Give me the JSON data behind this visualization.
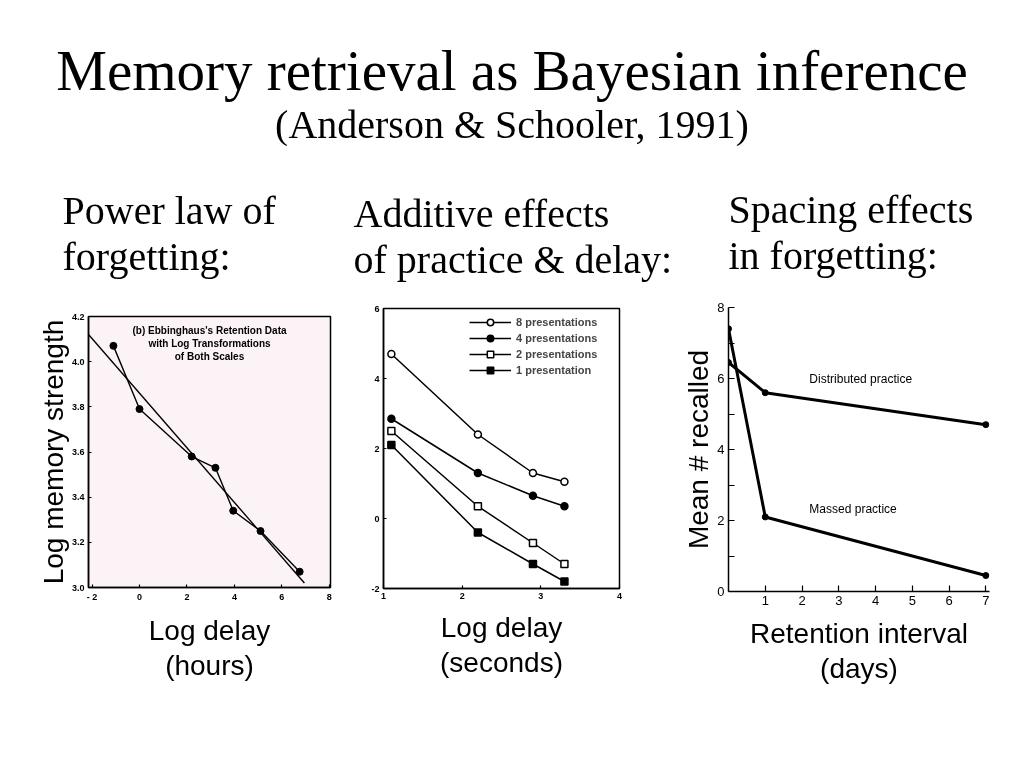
{
  "chart_data": [
    {
      "type": "line",
      "title": "Memory retrieval as Bayesian inference",
      "subtitle": "(Anderson & Schooler, 1991)",
      "annotations": [
        "Power law of\nforgetting:",
        "(b) Ebbinghaus's Retention Data\nwith Log Transformations\nof Both Scales"
      ],
      "xlabel": "Log delay\n(hours)",
      "ylabel": "Log memory strength",
      "xlim": [
        -2.15,
        8.05
      ],
      "ylim": [
        3.0,
        4.2
      ],
      "xticks": [
        {
          "value": -2,
          "label": "- 2"
        },
        0,
        2,
        4,
        6,
        8
      ],
      "yticks": [
        {
          "value": 3,
          "label": "3.0"
        },
        3.2,
        3.4,
        3.6,
        3.8,
        {
          "value": 4,
          "label": "4.0"
        },
        4.2
      ],
      "series": [
        {
          "type": "line",
          "color": "#000000",
          "marker": "circle",
          "x": [
            -1.1,
            0,
            2.2,
            3.2,
            3.95,
            5.1,
            6.75
          ],
          "values": [
            4.07,
            3.79,
            3.58,
            3.53,
            3.34,
            3.25,
            3.07
          ]
        },
        {
          "type": "line",
          "color": "#000000",
          "marker": "none",
          "x": [
            -2.15,
            6.95
          ],
          "values": [
            4.12,
            3.02
          ]
        }
      ]
    },
    {
      "type": "line",
      "title": "Additive effects\nof practice & delay:",
      "xlabel": "Log delay\n(seconds)",
      "xlim": [
        1,
        4
      ],
      "ylim": [
        -2,
        6
      ],
      "xticks": [
        1,
        2,
        3,
        4
      ],
      "yticks": [
        -2,
        0,
        2,
        4,
        6
      ],
      "legend": "top right",
      "x": [
        1.1,
        2.2,
        2.9,
        3.3
      ],
      "series": [
        {
          "name": "8 presentations",
          "color": "#000000",
          "marker": "circle_open",
          "values": [
            4.7,
            2.4,
            1.3,
            1.05
          ]
        },
        {
          "name": "4 presentations",
          "color": "#000000",
          "marker": "circle",
          "values": [
            2.85,
            1.3,
            0.65,
            0.35
          ]
        },
        {
          "name": "2 presentations",
          "color": "#000000",
          "marker": "square_open",
          "values": [
            2.5,
            0.35,
            -0.7,
            -1.3
          ]
        },
        {
          "name": "1 presentation",
          "color": "#000000",
          "marker": "square",
          "values": [
            2.1,
            -0.4,
            -1.3,
            -1.8
          ]
        }
      ]
    },
    {
      "type": "line",
      "title": "Spacing effects\nin forgetting:",
      "xlabel": "Retention interval\n(days)",
      "ylabel": "Mean # recalled",
      "xlim": [
        0,
        7.1
      ],
      "ylim": [
        0,
        8
      ],
      "xticks": [
        1,
        2,
        3,
        4,
        5,
        6,
        7
      ],
      "yticks": [
        0,
        {
          "value": 1,
          "label": null
        },
        2,
        {
          "value": 3,
          "label": null
        },
        4,
        {
          "value": 5,
          "label": null
        },
        6,
        {
          "value": 7,
          "label": null
        },
        8
      ],
      "marker": "circle",
      "series": [
        {
          "name": "Distributed practice",
          "color": "#000000",
          "x": [
            0,
            1,
            7
          ],
          "values": [
            6.45,
            5.6,
            4.7
          ]
        },
        {
          "name": "Massed practice",
          "color": "#000000",
          "x": [
            0,
            1,
            7
          ],
          "values": [
            7.4,
            2.1,
            0.45
          ]
        }
      ]
    }
  ]
}
